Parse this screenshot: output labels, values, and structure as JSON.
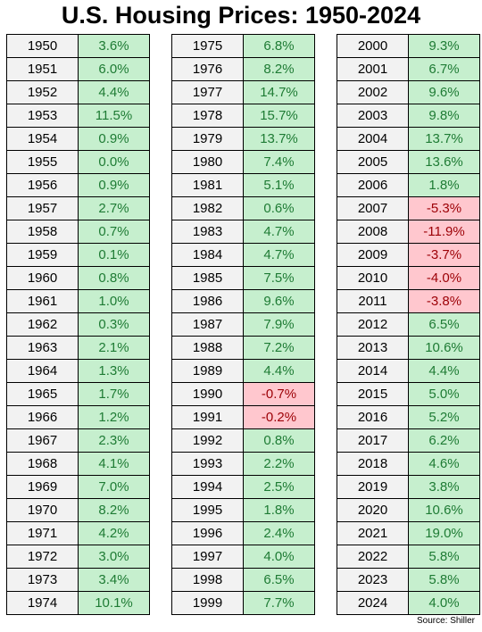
{
  "title": "U.S. Housing Prices: 1950-2024",
  "source": "Source: Shiller",
  "colors": {
    "positive_bg": "#c6efce",
    "positive_text": "#1e7b34",
    "negative_bg": "#ffc7ce",
    "negative_text": "#9c0006",
    "year_bg": "#f2f2f2"
  },
  "chart_data": {
    "type": "table",
    "title": "U.S. Housing Prices: 1950-2024",
    "columns": [
      [
        {
          "year": "1950",
          "change": "3.6%"
        },
        {
          "year": "1951",
          "change": "6.0%"
        },
        {
          "year": "1952",
          "change": "4.4%"
        },
        {
          "year": "1953",
          "change": "11.5%"
        },
        {
          "year": "1954",
          "change": "0.9%"
        },
        {
          "year": "1955",
          "change": "0.0%"
        },
        {
          "year": "1956",
          "change": "0.9%"
        },
        {
          "year": "1957",
          "change": "2.7%"
        },
        {
          "year": "1958",
          "change": "0.7%"
        },
        {
          "year": "1959",
          "change": "0.1%"
        },
        {
          "year": "1960",
          "change": "0.8%"
        },
        {
          "year": "1961",
          "change": "1.0%"
        },
        {
          "year": "1962",
          "change": "0.3%"
        },
        {
          "year": "1963",
          "change": "2.1%"
        },
        {
          "year": "1964",
          "change": "1.3%"
        },
        {
          "year": "1965",
          "change": "1.7%"
        },
        {
          "year": "1966",
          "change": "1.2%"
        },
        {
          "year": "1967",
          "change": "2.3%"
        },
        {
          "year": "1968",
          "change": "4.1%"
        },
        {
          "year": "1969",
          "change": "7.0%"
        },
        {
          "year": "1970",
          "change": "8.2%"
        },
        {
          "year": "1971",
          "change": "4.2%"
        },
        {
          "year": "1972",
          "change": "3.0%"
        },
        {
          "year": "1973",
          "change": "3.4%"
        },
        {
          "year": "1974",
          "change": "10.1%"
        }
      ],
      [
        {
          "year": "1975",
          "change": "6.8%"
        },
        {
          "year": "1976",
          "change": "8.2%"
        },
        {
          "year": "1977",
          "change": "14.7%"
        },
        {
          "year": "1978",
          "change": "15.7%"
        },
        {
          "year": "1979",
          "change": "13.7%"
        },
        {
          "year": "1980",
          "change": "7.4%"
        },
        {
          "year": "1981",
          "change": "5.1%"
        },
        {
          "year": "1982",
          "change": "0.6%"
        },
        {
          "year": "1983",
          "change": "4.7%"
        },
        {
          "year": "1984",
          "change": "4.7%"
        },
        {
          "year": "1985",
          "change": "7.5%"
        },
        {
          "year": "1986",
          "change": "9.6%"
        },
        {
          "year": "1987",
          "change": "7.9%"
        },
        {
          "year": "1988",
          "change": "7.2%"
        },
        {
          "year": "1989",
          "change": "4.4%"
        },
        {
          "year": "1990",
          "change": "-0.7%"
        },
        {
          "year": "1991",
          "change": "-0.2%"
        },
        {
          "year": "1992",
          "change": "0.8%"
        },
        {
          "year": "1993",
          "change": "2.2%"
        },
        {
          "year": "1994",
          "change": "2.5%"
        },
        {
          "year": "1995",
          "change": "1.8%"
        },
        {
          "year": "1996",
          "change": "2.4%"
        },
        {
          "year": "1997",
          "change": "4.0%"
        },
        {
          "year": "1998",
          "change": "6.5%"
        },
        {
          "year": "1999",
          "change": "7.7%"
        }
      ],
      [
        {
          "year": "2000",
          "change": "9.3%"
        },
        {
          "year": "2001",
          "change": "6.7%"
        },
        {
          "year": "2002",
          "change": "9.6%"
        },
        {
          "year": "2003",
          "change": "9.8%"
        },
        {
          "year": "2004",
          "change": "13.7%"
        },
        {
          "year": "2005",
          "change": "13.6%"
        },
        {
          "year": "2006",
          "change": "1.8%"
        },
        {
          "year": "2007",
          "change": "-5.3%"
        },
        {
          "year": "2008",
          "change": "-11.9%"
        },
        {
          "year": "2009",
          "change": "-3.7%"
        },
        {
          "year": "2010",
          "change": "-4.0%"
        },
        {
          "year": "2011",
          "change": "-3.8%"
        },
        {
          "year": "2012",
          "change": "6.5%"
        },
        {
          "year": "2013",
          "change": "10.6%"
        },
        {
          "year": "2014",
          "change": "4.4%"
        },
        {
          "year": "2015",
          "change": "5.0%"
        },
        {
          "year": "2016",
          "change": "5.2%"
        },
        {
          "year": "2017",
          "change": "6.2%"
        },
        {
          "year": "2018",
          "change": "4.6%"
        },
        {
          "year": "2019",
          "change": "3.8%"
        },
        {
          "year": "2020",
          "change": "10.6%"
        },
        {
          "year": "2021",
          "change": "19.0%"
        },
        {
          "year": "2022",
          "change": "5.8%"
        },
        {
          "year": "2023",
          "change": "5.8%"
        },
        {
          "year": "2024",
          "change": "4.0%"
        }
      ]
    ]
  }
}
